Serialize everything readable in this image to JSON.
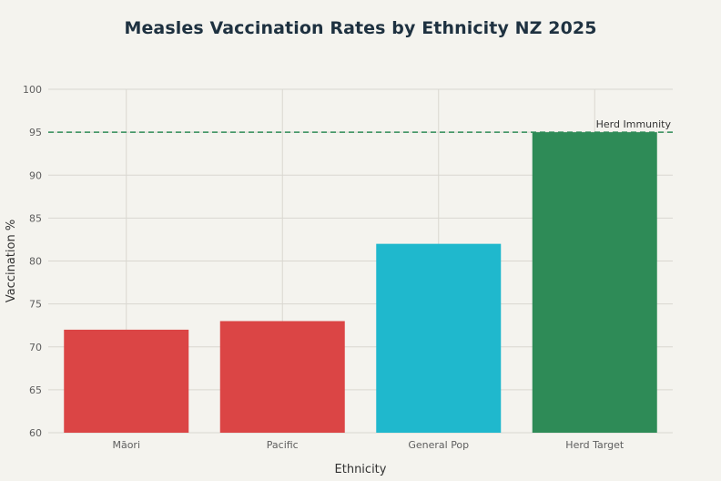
{
  "chart_data": {
    "type": "bar",
    "title": "Measles Vaccination Rates by Ethnicity NZ 2025",
    "xlabel": "Ethnicity",
    "ylabel": "Vaccination %",
    "categories": [
      "Māori",
      "Pacific",
      "General Pop",
      "Herd Target"
    ],
    "values": [
      72,
      73,
      82,
      95
    ],
    "bar_colors": [
      "#db4545",
      "#db4545",
      "#1fb8cd",
      "#2e8b57"
    ],
    "ylim": [
      60,
      100
    ],
    "yticks": [
      "60",
      "65",
      "70",
      "75",
      "80",
      "85",
      "90",
      "95",
      "100"
    ],
    "reference_line": {
      "value": 95,
      "label": "Herd Immunity",
      "color": "#2e8b57",
      "style": "dashed"
    },
    "grid": true,
    "legend": "none"
  },
  "colors": {
    "background": "#f4f3ee",
    "gridline": "#d9d7d0",
    "title": "#1e3140",
    "axis_text": "#5e5e5e"
  }
}
